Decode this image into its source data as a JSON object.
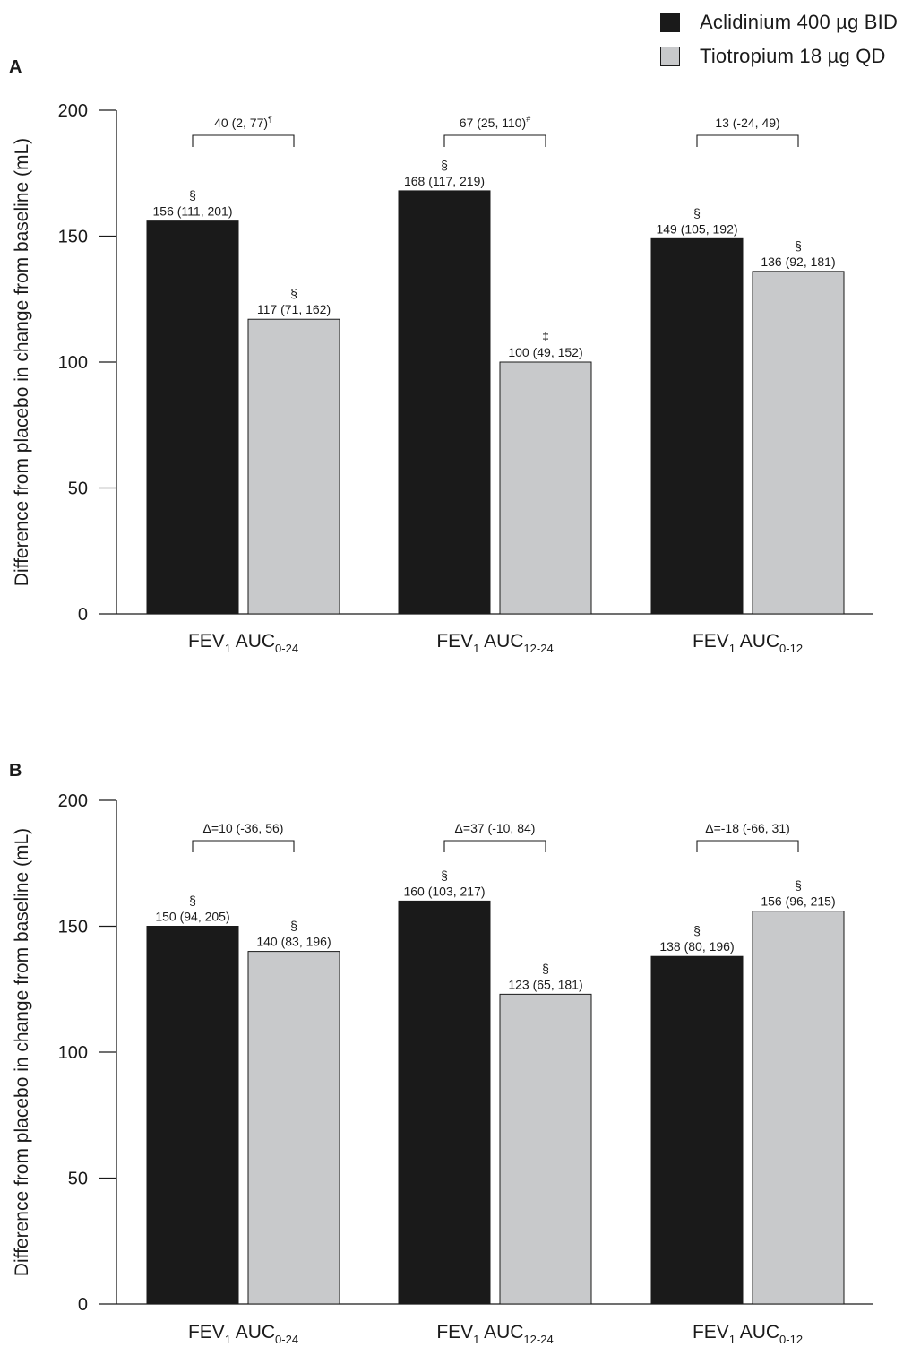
{
  "legend": [
    {
      "label": "Aclidinium 400 µg BID",
      "color": "#1a1a1a"
    },
    {
      "label": "Tiotropium 18 µg QD",
      "color": "#c8c9cb"
    }
  ],
  "chart_data": [
    {
      "type": "bar",
      "panel_label": "A",
      "ylabel": "Difference from placebo in change from baseline (mL)",
      "ylim": [
        0,
        200
      ],
      "yticks": [
        0,
        50,
        100,
        150,
        200
      ],
      "categories": [
        {
          "main": "FEV",
          "sub1": "1",
          "mid": " AUC",
          "sub2": "0-24"
        },
        {
          "main": "FEV",
          "sub1": "1",
          "mid": " AUC",
          "sub2": "12-24"
        },
        {
          "main": "FEV",
          "sub1": "1",
          "mid": " AUC",
          "sub2": "0-12"
        }
      ],
      "series": [
        {
          "name": "Aclidinium 400 µg BID",
          "values": [
            156,
            168,
            149
          ],
          "labels": [
            "156 (111, 201)",
            "168 (117, 219)",
            "149 (105, 192)"
          ],
          "symbols": [
            "§",
            "§",
            "§"
          ]
        },
        {
          "name": "Tiotropium 18 µg QD",
          "values": [
            117,
            100,
            136
          ],
          "labels": [
            "117 (71, 162)",
            "100 (49, 152)",
            "136 (92, 181)"
          ],
          "symbols": [
            "§",
            "‡",
            "§"
          ]
        }
      ],
      "comparisons": [
        {
          "text": "40 (2, 77)",
          "sup": "¶"
        },
        {
          "text": "67 (25, 110)",
          "sup": "#"
        },
        {
          "text": "13 (-24, 49)",
          "sup": ""
        }
      ]
    },
    {
      "type": "bar",
      "panel_label": "B",
      "ylabel": "Difference from placebo in change from baseline (mL)",
      "ylim": [
        0,
        200
      ],
      "yticks": [
        0,
        50,
        100,
        150,
        200
      ],
      "categories": [
        {
          "main": "FEV",
          "sub1": "1",
          "mid": " AUC",
          "sub2": "0-24"
        },
        {
          "main": "FEV",
          "sub1": "1",
          "mid": " AUC",
          "sub2": "12-24"
        },
        {
          "main": "FEV",
          "sub1": "1",
          "mid": " AUC",
          "sub2": "0-12"
        }
      ],
      "series": [
        {
          "name": "Aclidinium 400 µg BID",
          "values": [
            150,
            160,
            138
          ],
          "labels": [
            "150 (94, 205)",
            "160 (103, 217)",
            "138 (80, 196)"
          ],
          "symbols": [
            "§",
            "§",
            "§"
          ]
        },
        {
          "name": "Tiotropium 18 µg QD",
          "values": [
            140,
            123,
            156
          ],
          "labels": [
            "140 (83, 196)",
            "123 (65, 181)",
            "156 (96, 215)"
          ],
          "symbols": [
            "§",
            "§",
            "§"
          ]
        }
      ],
      "comparisons": [
        {
          "text": "Δ=10 (-36, 56)",
          "sup": ""
        },
        {
          "text": "Δ=37 (-10, 84)",
          "sup": ""
        },
        {
          "text": "Δ=-18 (-66, 31)",
          "sup": ""
        }
      ]
    }
  ]
}
